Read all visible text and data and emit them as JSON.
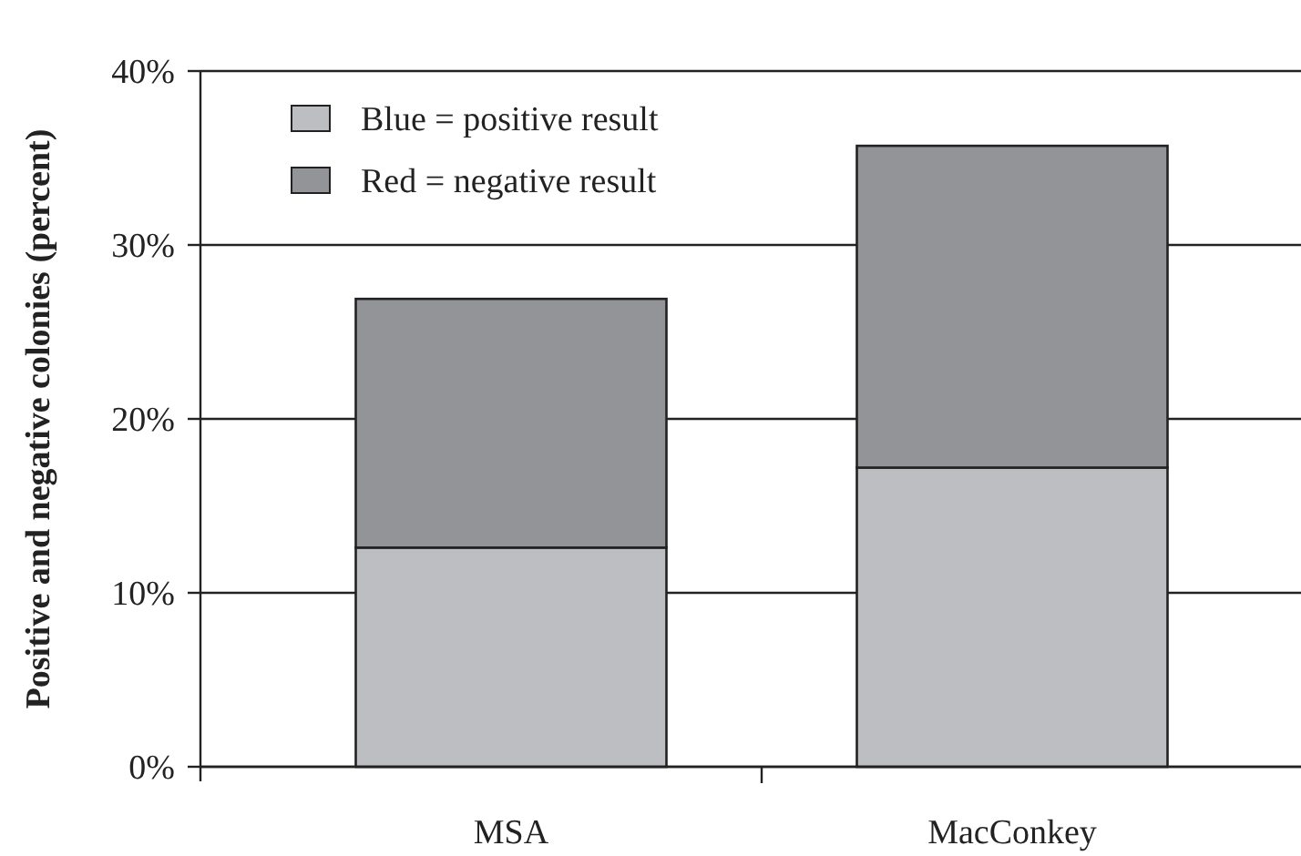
{
  "chart_data": {
    "type": "bar",
    "stacked": true,
    "ylabel": "Positive and negative colonies (percent)",
    "categories": [
      "MSA",
      "MacConkey"
    ],
    "series": [
      {
        "name": "Blue = positive result",
        "color": "#bdbec2",
        "values": [
          12.6,
          17.2
        ]
      },
      {
        "name": "Red = negative result",
        "color": "#939498",
        "values": [
          14.3,
          18.5
        ]
      }
    ],
    "ylim": [
      0,
      40
    ],
    "yticks": [
      {
        "value": 0,
        "label": "0%"
      },
      {
        "value": 10,
        "label": "10%"
      },
      {
        "value": 20,
        "label": "20%"
      },
      {
        "value": 30,
        "label": "30%"
      },
      {
        "value": 40,
        "label": "40%"
      }
    ],
    "grid": "y",
    "legend": "top left"
  }
}
